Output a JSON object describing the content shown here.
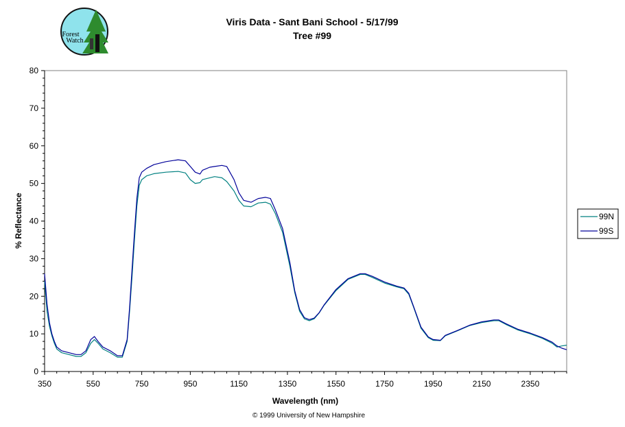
{
  "logo": {
    "text_line1": "Forest",
    "text_line2": "Watch"
  },
  "copyright": "© 1999 University of New Hampshire",
  "colors": {
    "99N": "#008080",
    "99S": "#000099",
    "frame": "#808080"
  },
  "chart_data": {
    "type": "line",
    "title": "Viris Data - Sant Bani School - 5/17/99",
    "subtitle": "Tree #99",
    "xlabel": "Wavelength (nm)",
    "ylabel": "% Reflectance",
    "xlim": [
      350,
      2500
    ],
    "ylim": [
      0,
      80
    ],
    "x_ticks": [
      350,
      550,
      750,
      950,
      1150,
      1350,
      1550,
      1750,
      1950,
      2150,
      2350
    ],
    "y_ticks": [
      0,
      10,
      20,
      30,
      40,
      50,
      60,
      70,
      80
    ],
    "grid": false,
    "legend_position": "right",
    "series": [
      {
        "name": "99N",
        "color": "#008080",
        "x": [
          350,
          360,
          370,
          380,
          390,
          400,
          420,
          450,
          480,
          500,
          520,
          540,
          555,
          570,
          590,
          620,
          650,
          670,
          690,
          700,
          710,
          720,
          730,
          740,
          750,
          770,
          800,
          850,
          900,
          930,
          950,
          970,
          990,
          1000,
          1030,
          1050,
          1080,
          1100,
          1130,
          1150,
          1170,
          1200,
          1230,
          1260,
          1280,
          1300,
          1330,
          1360,
          1380,
          1400,
          1420,
          1440,
          1460,
          1480,
          1500,
          1550,
          1600,
          1650,
          1670,
          1700,
          1750,
          1800,
          1830,
          1850,
          1870,
          1900,
          1930,
          1950,
          1980,
          2000,
          2050,
          2100,
          2150,
          2200,
          2220,
          2250,
          2300,
          2350,
          2400,
          2440,
          2460,
          2480,
          2500
        ],
        "values": [
          24.0,
          16.0,
          12.0,
          9.5,
          7.5,
          6.0,
          5.0,
          4.5,
          4.0,
          4.0,
          5.0,
          7.5,
          8.5,
          7.5,
          6.0,
          5.0,
          3.8,
          3.8,
          8.0,
          16.0,
          25.0,
          35.0,
          44.0,
          49.5,
          51.0,
          52.0,
          52.6,
          53.0,
          53.2,
          52.8,
          51.0,
          50.0,
          50.2,
          51.0,
          51.5,
          51.8,
          51.5,
          50.5,
          48.0,
          45.5,
          44.0,
          43.8,
          44.8,
          45.0,
          44.5,
          42.0,
          37.0,
          28.0,
          21.0,
          16.0,
          14.0,
          13.5,
          14.0,
          15.5,
          17.5,
          21.5,
          24.5,
          25.8,
          25.8,
          25.0,
          23.5,
          22.5,
          22.0,
          20.5,
          17.0,
          11.5,
          9.0,
          8.3,
          8.2,
          9.5,
          10.8,
          12.2,
          13.0,
          13.5,
          13.5,
          12.5,
          11.0,
          10.0,
          8.8,
          7.5,
          6.5,
          6.8,
          7.0
        ]
      },
      {
        "name": "99S",
        "color": "#000099",
        "x": [
          350,
          360,
          370,
          380,
          390,
          400,
          420,
          450,
          480,
          500,
          520,
          540,
          555,
          570,
          590,
          620,
          650,
          670,
          690,
          700,
          710,
          720,
          730,
          740,
          750,
          770,
          800,
          850,
          900,
          930,
          950,
          970,
          990,
          1000,
          1030,
          1050,
          1080,
          1100,
          1130,
          1150,
          1170,
          1200,
          1230,
          1260,
          1280,
          1300,
          1330,
          1360,
          1380,
          1400,
          1420,
          1440,
          1460,
          1480,
          1500,
          1550,
          1600,
          1650,
          1670,
          1700,
          1750,
          1800,
          1830,
          1850,
          1870,
          1900,
          1930,
          1950,
          1980,
          2000,
          2050,
          2100,
          2150,
          2200,
          2220,
          2250,
          2300,
          2350,
          2400,
          2440,
          2460,
          2480,
          2500
        ],
        "values": [
          26.0,
          18.0,
          13.0,
          10.0,
          8.0,
          6.5,
          5.5,
          5.0,
          4.5,
          4.5,
          5.5,
          8.5,
          9.3,
          8.0,
          6.5,
          5.5,
          4.2,
          4.2,
          8.5,
          17.0,
          27.0,
          37.0,
          46.0,
          51.5,
          53.0,
          54.0,
          55.0,
          55.8,
          56.3,
          56.0,
          54.5,
          53.0,
          52.5,
          53.5,
          54.3,
          54.5,
          54.8,
          54.5,
          51.0,
          47.5,
          45.5,
          45.0,
          46.0,
          46.3,
          46.0,
          43.0,
          38.0,
          29.0,
          21.5,
          16.5,
          14.3,
          13.8,
          14.2,
          15.6,
          17.6,
          21.8,
          24.7,
          26.0,
          26.0,
          25.3,
          23.8,
          22.7,
          22.2,
          20.8,
          17.2,
          11.8,
          9.2,
          8.5,
          8.3,
          9.6,
          10.9,
          12.3,
          13.2,
          13.7,
          13.7,
          12.7,
          11.2,
          10.2,
          9.0,
          7.8,
          6.8,
          6.2,
          5.8
        ]
      }
    ]
  }
}
